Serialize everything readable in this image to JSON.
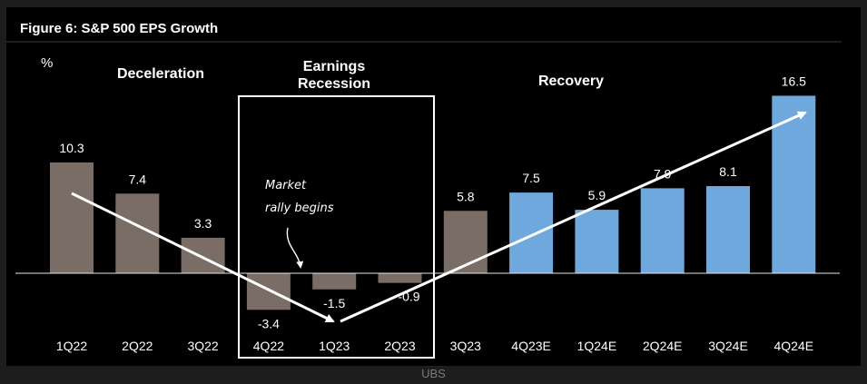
{
  "source": "UBS",
  "chart_data": {
    "type": "bar",
    "title": "Figure 6: S&P 500 EPS Growth",
    "ylabel": "%",
    "ylim": [
      -5,
      18
    ],
    "grid": false,
    "legend": "none",
    "categories": [
      "1Q22",
      "2Q22",
      "3Q22",
      "4Q22",
      "1Q23",
      "2Q23",
      "3Q23",
      "4Q23E",
      "1Q24E",
      "2Q24E",
      "3Q24E",
      "4Q24E"
    ],
    "values": [
      10.3,
      7.4,
      3.3,
      -3.4,
      -1.5,
      -0.9,
      5.8,
      7.5,
      5.9,
      7.9,
      8.1,
      16.5
    ],
    "value_labels": [
      "10.3",
      "7.4",
      "3.3",
      "-3.4",
      "-1.5",
      "-0.9",
      "5.8",
      "7.5",
      "5.9",
      "7.9",
      "8.1",
      "16.5"
    ],
    "bar_kind": [
      "actual",
      "actual",
      "actual",
      "actual",
      "actual",
      "actual",
      "actual",
      "estimate",
      "estimate",
      "estimate",
      "estimate",
      "estimate"
    ],
    "colors": {
      "actual": "#7a6d66",
      "estimate": "#6ea8dc",
      "text": "#ffffff",
      "axis": "#e6e6e6"
    },
    "phases": [
      {
        "label": "Deceleration"
      },
      {
        "label": "Earnings\nRecession"
      },
      {
        "label": "Recovery"
      }
    ],
    "annotations": [
      {
        "text": "Market\nrally begins"
      }
    ]
  }
}
